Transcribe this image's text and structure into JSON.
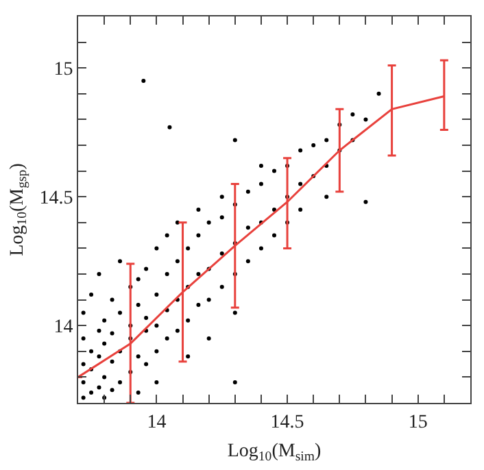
{
  "chart_data": {
    "type": "scatter",
    "xlabel": "Log$_{10}$(M$_{sim}$)",
    "ylabel": "Log$_{10}$(M$_{gsp}$)",
    "xlim": [
      13.7,
      15.2
    ],
    "ylim": [
      13.7,
      15.2
    ],
    "xticks": [
      {
        "value": 13.8,
        "label": null
      },
      {
        "value": 13.9,
        "label": null
      },
      14,
      {
        "value": 14.1,
        "label": null
      },
      {
        "value": 14.2,
        "label": null
      },
      {
        "value": 14.3,
        "label": null
      },
      {
        "value": 14.4,
        "label": null
      },
      14.5,
      {
        "value": 14.6,
        "label": null
      },
      {
        "value": 14.7,
        "label": null
      },
      {
        "value": 14.8,
        "label": null
      },
      {
        "value": 14.9,
        "label": null
      },
      15,
      {
        "value": 15.1,
        "label": null
      }
    ],
    "yticks": [
      {
        "value": 13.8,
        "label": null
      },
      {
        "value": 13.9,
        "label": null
      },
      14,
      {
        "value": 14.1,
        "label": null
      },
      {
        "value": 14.2,
        "label": null
      },
      {
        "value": 14.3,
        "label": null
      },
      {
        "value": 14.4,
        "label": null
      },
      14.5,
      {
        "value": 14.6,
        "label": null
      },
      {
        "value": 14.7,
        "label": null
      },
      {
        "value": 14.8,
        "label": null
      },
      {
        "value": 14.9,
        "label": null
      },
      15,
      {
        "value": 15.1,
        "label": null
      }
    ],
    "grid": false,
    "series": [
      {
        "color": "#000000",
        "marker": "circle",
        "x": [
          13.72,
          13.72,
          13.72,
          13.72,
          13.72,
          13.75,
          13.75,
          13.75,
          13.75,
          13.78,
          13.78,
          13.78,
          13.78,
          13.8,
          13.8,
          13.8,
          13.8,
          13.83,
          13.83,
          13.83,
          13.83,
          13.86,
          13.86,
          13.86,
          13.86,
          13.9,
          13.9,
          13.9,
          13.9,
          13.93,
          13.93,
          13.93,
          13.93,
          13.96,
          13.96,
          13.96,
          13.96,
          14.0,
          14.0,
          14.0,
          14.0,
          14.0,
          14.04,
          14.04,
          14.04,
          14.04,
          14.08,
          14.08,
          14.08,
          14.08,
          14.12,
          14.12,
          14.12,
          14.12,
          14.16,
          14.16,
          14.16,
          14.16,
          14.2,
          14.2,
          14.2,
          14.2,
          14.25,
          14.25,
          14.25,
          14.25,
          14.3,
          14.3,
          14.3,
          14.3,
          14.35,
          14.35,
          14.35,
          14.4,
          14.4,
          14.4,
          14.4,
          14.45,
          14.45,
          14.45,
          14.5,
          14.5,
          14.5,
          14.55,
          14.55,
          14.55,
          14.6,
          14.6,
          14.65,
          14.65,
          14.65,
          14.7,
          14.7,
          14.75,
          14.75,
          14.8,
          14.8,
          14.85,
          13.95,
          14.05,
          14.3,
          14.3
        ],
        "values": [
          13.72,
          13.85,
          13.95,
          14.05,
          13.78,
          13.9,
          14.12,
          13.74,
          13.83,
          13.98,
          13.76,
          13.88,
          14.2,
          13.8,
          13.93,
          14.02,
          13.72,
          13.86,
          14.1,
          13.97,
          13.75,
          13.9,
          14.05,
          13.78,
          14.25,
          13.82,
          14.0,
          14.15,
          13.95,
          13.88,
          14.08,
          13.74,
          14.18,
          13.98,
          14.22,
          13.85,
          14.03,
          14.0,
          14.12,
          13.9,
          14.3,
          13.78,
          14.06,
          14.2,
          13.95,
          14.35,
          14.1,
          14.25,
          13.98,
          14.4,
          14.15,
          14.3,
          14.02,
          13.88,
          14.2,
          14.35,
          14.08,
          14.45,
          14.22,
          14.4,
          14.1,
          13.95,
          14.28,
          14.42,
          14.15,
          14.5,
          14.32,
          14.47,
          14.2,
          14.05,
          14.38,
          14.52,
          14.25,
          14.4,
          14.55,
          14.3,
          14.62,
          14.45,
          14.6,
          14.35,
          14.5,
          14.62,
          14.4,
          14.55,
          14.68,
          14.45,
          14.58,
          14.7,
          14.62,
          14.72,
          14.5,
          14.68,
          14.78,
          14.72,
          14.82,
          14.8,
          14.48,
          14.9,
          14.95,
          14.77,
          13.78,
          14.72
        ]
      },
      {
        "type": "line",
        "color": "#e8413c",
        "marker": "none",
        "line_style": "solid",
        "x": [
          13.7,
          13.9,
          14.1,
          14.3,
          14.5,
          14.7,
          14.9,
          15.1
        ],
        "values": [
          13.8,
          13.93,
          14.13,
          14.31,
          14.48,
          14.68,
          14.84,
          14.89
        ],
        "errors": [
          null,
          [
            13.7,
            14.24
          ],
          [
            13.86,
            14.4
          ],
          [
            14.07,
            14.55
          ],
          [
            14.3,
            14.65
          ],
          [
            14.52,
            14.84
          ],
          [
            14.66,
            15.01
          ],
          [
            14.76,
            15.03
          ]
        ]
      }
    ]
  }
}
